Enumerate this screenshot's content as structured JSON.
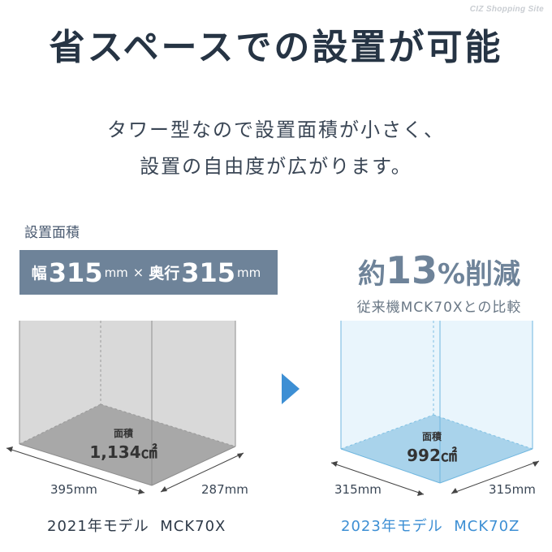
{
  "watermark": "CIZ Shopping Site",
  "headline": "省スペースでの設置が可能",
  "subtitle": {
    "line1": "タワー型なので設置面積が小さく、",
    "line2": "設置の自由度が広がります。"
  },
  "area_label": "設置面積",
  "dimensions": {
    "width_label": "幅",
    "width_value": "315",
    "width_unit": "mm",
    "times": "×",
    "depth_label": "奥行",
    "depth_value": "315",
    "depth_unit": "mm"
  },
  "reduction": {
    "prefix": "約",
    "value": "13",
    "suffix": "%削減"
  },
  "comparison_note": "従来機MCK70Xとの比較",
  "old_model": {
    "area_label": "面積",
    "area_value": "1,134㎠",
    "width_dim": "395mm",
    "depth_dim": "287mm",
    "caption": "2021年モデル  MCK70X"
  },
  "new_model": {
    "area_label": "面積",
    "area_value": "992㎠",
    "width_dim": "315mm",
    "depth_dim": "315mm",
    "caption": "2023年モデル  MCK70Z"
  },
  "colors": {
    "accent_blue": "#3d8fd4",
    "slate": "#6e8399",
    "dark_text": "#263444"
  }
}
